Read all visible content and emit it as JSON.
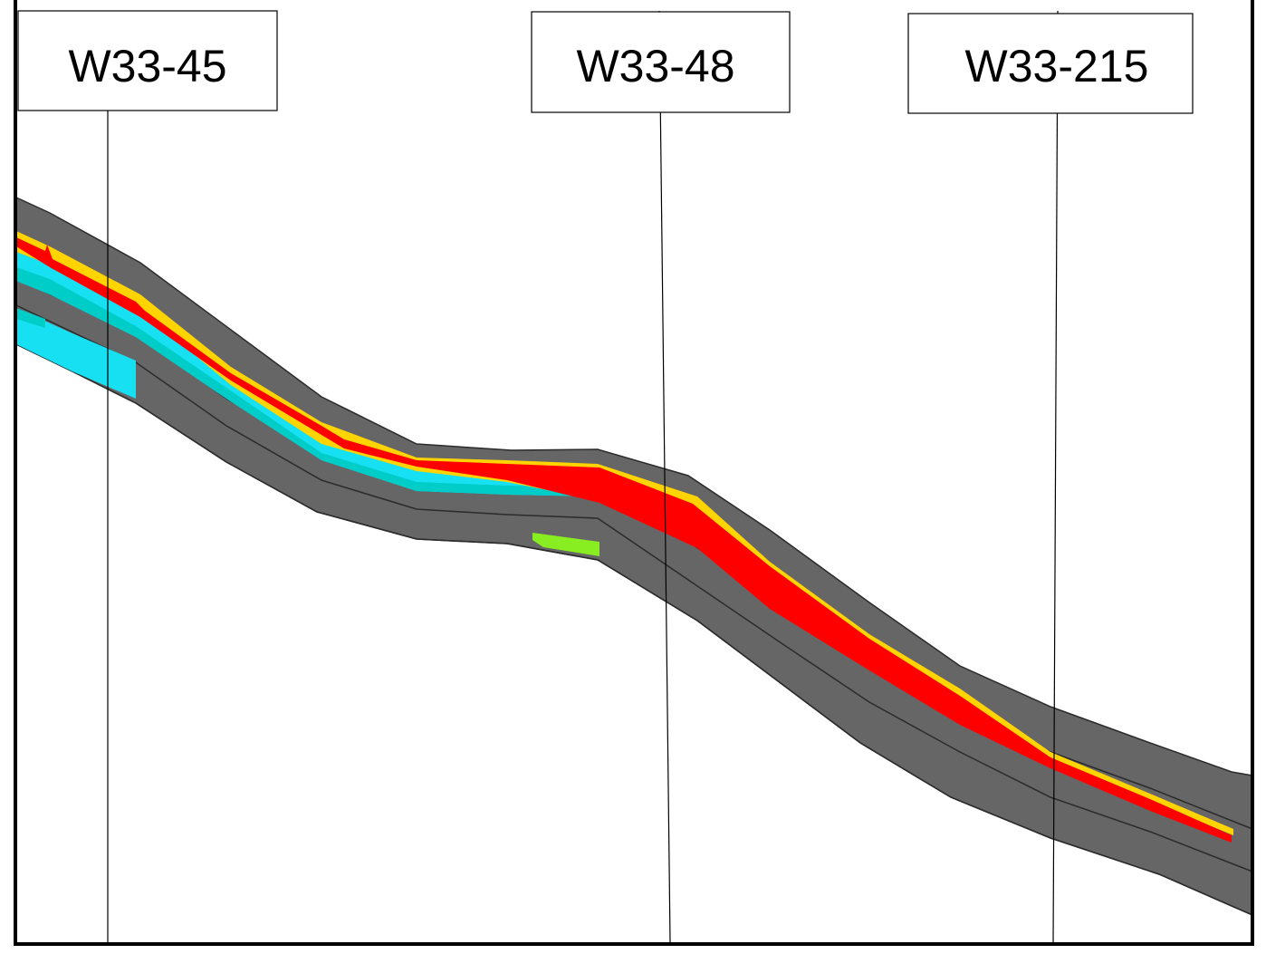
{
  "wells": [
    {
      "name": "W33-45"
    },
    {
      "name": "W33-48"
    },
    {
      "name": "W33-215"
    }
  ],
  "colors": {
    "background": "#ffffff",
    "formation": "#666666",
    "layer_line": "#2b2b2b",
    "frame": "#000000",
    "well_line": "#000000",
    "facies_red": "#ff0000",
    "facies_yellow": "#ffd400",
    "facies_cyan": "#16e0f2",
    "facies_teal": "#00ccc8",
    "facies_green": "#88ee22"
  }
}
